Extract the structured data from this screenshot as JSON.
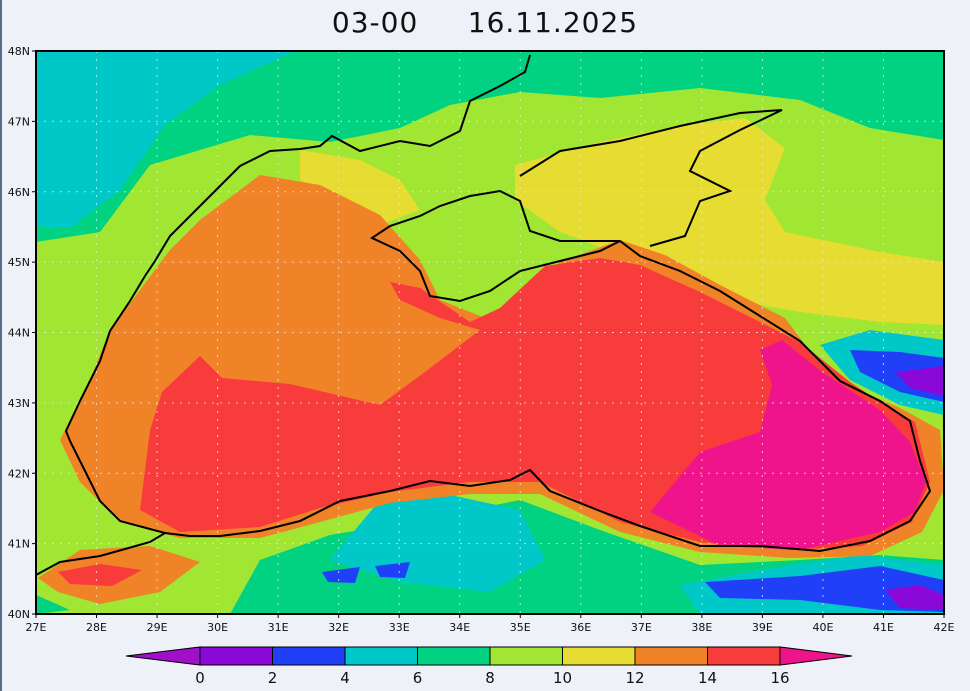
{
  "title": "03-00     16.11.2025",
  "map": {
    "region": "Black Sea",
    "lon_labels": [
      "27E",
      "28E",
      "29E",
      "30E",
      "31E",
      "32E",
      "33E",
      "34E",
      "35E",
      "36E",
      "37E",
      "38E",
      "39E",
      "40E",
      "41E",
      "42E"
    ],
    "lat_labels": [
      "48N",
      "47N",
      "46N",
      "45N",
      "44N",
      "43N",
      "42N",
      "41N",
      "40N"
    ],
    "lon_range": [
      27,
      42
    ],
    "lat_range": [
      40,
      48
    ],
    "grid": true
  },
  "colorbar": {
    "labels": [
      "0",
      "2",
      "4",
      "6",
      "8",
      "10",
      "12",
      "14",
      "16"
    ],
    "colors": {
      "below_0": "#a010c8",
      "0_2": "#8a08d8",
      "2_4": "#2040f8",
      "4_6": "#00c8c8",
      "6_8": "#00d282",
      "8_10": "#a0e632",
      "10_12": "#e6dc32",
      "12_14": "#f08228",
      "14_16": "#f83c3c",
      "above_16": "#f0148c"
    }
  }
}
